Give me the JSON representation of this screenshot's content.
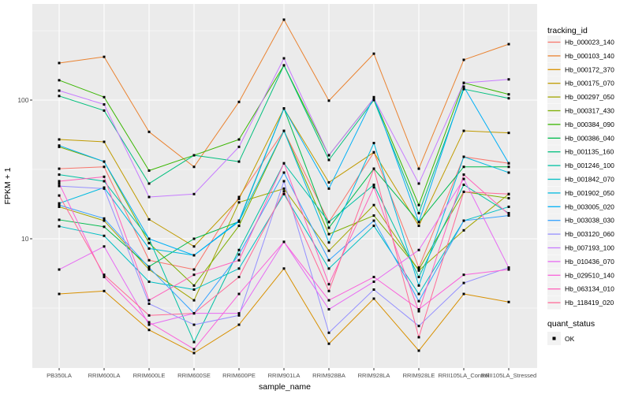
{
  "figure": {
    "legend_title": "tracking_id",
    "quant_legend_title": "quant_status",
    "quant_legend_items": [
      "OK"
    ],
    "background": "#FFFFFF",
    "panel_color": "#EBEBEB",
    "grid_color": "#FFFFFF",
    "axis_text_color": "#4D4D4D",
    "tick_mark_color": "#333333",
    "legend_key_fill": "#F2F2F2",
    "point_color": "#000000"
  },
  "chart_data": {
    "type": "line",
    "title": "",
    "xlabel": "sample_name",
    "ylabel": "FPKM + 1",
    "y_scale": "log10",
    "ylim": [
      1.15,
      490
    ],
    "grid": true,
    "legend_position": "right",
    "y_ticks": [
      {
        "value": 10,
        "label": "10"
      },
      {
        "value": 100,
        "label": "100"
      }
    ],
    "y_minor_ticks": [
      3.162,
      31.62,
      316.2
    ],
    "point_marker": "black-square",
    "categories": [
      "PB350LA",
      "RRIM600LA",
      "RRIM600LE",
      "RRIM600SE",
      "RRIM600PE",
      "RRIM901LA",
      "RRIM928BA",
      "RRIM928LA",
      "RRIM928LE",
      "RRII105LA_Control",
      "RRII105LA_Stressed"
    ],
    "quant_status": "OK",
    "series": [
      {
        "name": "Hb_000023_140",
        "color": "#F8766D",
        "values": [
          32,
          33,
          7.0,
          6.0,
          20,
          60,
          13.2,
          42,
          6.2,
          39,
          35
        ]
      },
      {
        "name": "Hb_000103_140",
        "color": "#EA8331",
        "values": [
          185,
          205,
          59,
          33,
          97,
          380,
          99,
          216,
          32,
          195,
          253
        ]
      },
      {
        "name": "Hb_000172_370",
        "color": "#D89000",
        "values": [
          4.0,
          4.2,
          2.2,
          1.5,
          2.4,
          6.1,
          1.75,
          3.7,
          1.56,
          4.0,
          3.5
        ]
      },
      {
        "name": "Hb_000175_070",
        "color": "#C09B00",
        "values": [
          52,
          50,
          13.8,
          8.8,
          19.4,
          87,
          25.5,
          42,
          12.4,
          60,
          58
        ]
      },
      {
        "name": "Hb_000297_050",
        "color": "#A3A500",
        "values": [
          17,
          13.5,
          6.0,
          3.6,
          18.3,
          23,
          8.2,
          17.5,
          5.9,
          11.5,
          21
        ]
      },
      {
        "name": "Hb_000317_430",
        "color": "#7CAE00",
        "values": [
          46,
          36,
          9.3,
          4.6,
          12.4,
          60,
          10.8,
          14.7,
          6.0,
          21.8,
          19.6
        ]
      },
      {
        "name": "Hb_000384_090",
        "color": "#39B600",
        "values": [
          139,
          105,
          31,
          40,
          52,
          178,
          40,
          103,
          17.5,
          133,
          110
        ]
      },
      {
        "name": "Hb_000386_040",
        "color": "#00BB4E",
        "values": [
          13.7,
          12.2,
          6.3,
          10,
          13.3,
          87,
          12,
          32,
          13.2,
          33,
          33
        ]
      },
      {
        "name": "Hb_001135_160",
        "color": "#00BF7D",
        "values": [
          107,
          84,
          25,
          40,
          36,
          178,
          37,
          100,
          15.3,
          120,
          103
        ]
      },
      {
        "name": "Hb_001246_100",
        "color": "#00C1A3",
        "values": [
          29,
          26,
          10,
          1.8,
          8.3,
          35,
          13.2,
          24.5,
          5.3,
          24.5,
          15.3
        ]
      },
      {
        "name": "Hb_001842_070",
        "color": "#00BFC4",
        "values": [
          12.3,
          10.5,
          4.9,
          4.3,
          6.1,
          21,
          6.1,
          12.4,
          4.0,
          13.5,
          17
        ]
      },
      {
        "name": "Hb_001902_050",
        "color": "#00BAE0",
        "values": [
          18,
          23.4,
          8.5,
          7.6,
          13.3,
          60,
          9.4,
          49,
          4.6,
          39,
          30
        ]
      },
      {
        "name": "Hb_003005_020",
        "color": "#00B0F6",
        "values": [
          47,
          36,
          10,
          7.6,
          13.5,
          87,
          23,
          105,
          13.2,
          125,
          35
        ]
      },
      {
        "name": "Hb_003038_030",
        "color": "#35A2FF",
        "values": [
          17.5,
          14,
          6.2,
          2.9,
          7.7,
          30,
          7.0,
          13.5,
          3.55,
          13.5,
          14.7
        ]
      },
      {
        "name": "Hb_003120_060",
        "color": "#9590FF",
        "values": [
          24,
          23,
          3.4,
          2.4,
          2.8,
          26,
          2.1,
          4.3,
          2.35,
          4.8,
          6.2
        ]
      },
      {
        "name": "Hb_007193_100",
        "color": "#C77CFF",
        "values": [
          117,
          93,
          20,
          21,
          46,
          200,
          40,
          103,
          25,
          133,
          141
        ]
      },
      {
        "name": "Hb_010436_070",
        "color": "#E76BF3",
        "values": [
          6.0,
          8.8,
          2.4,
          2.9,
          2.9,
          9.5,
          3.1,
          4.9,
          8.3,
          27,
          6.2
        ]
      },
      {
        "name": "Hb_029510_140",
        "color": "#FA62DB",
        "values": [
          25,
          5.3,
          2.5,
          1.6,
          4.0,
          9.5,
          3.6,
          5.3,
          3.1,
          5.5,
          6.0
        ]
      },
      {
        "name": "Hb_063134_010",
        "color": "#FF62BC",
        "values": [
          26,
          28,
          3.6,
          5.5,
          7.0,
          35,
          4.7,
          23.5,
          3.0,
          29,
          15
        ]
      },
      {
        "name": "Hb_118419_020",
        "color": "#FF6A98",
        "values": [
          20.5,
          5.5,
          2.8,
          2.9,
          5.3,
          22,
          4.2,
          32,
          1.95,
          21.8,
          21
        ]
      }
    ]
  }
}
